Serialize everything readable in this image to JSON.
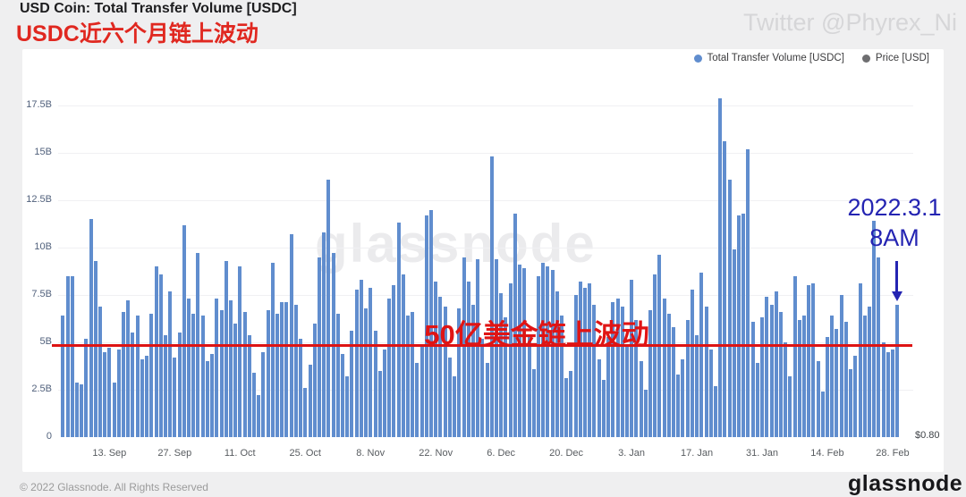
{
  "header": {
    "title": "USD Coin: Total Transfer Volume [USDC]",
    "subtitle_cn": "USDC近六个月链上波动",
    "twitter_handle": "Twitter @Phyrex_Ni"
  },
  "legend": {
    "items": [
      {
        "label": "Total Transfer Volume [USDC]",
        "color": "#608dce"
      },
      {
        "label": "Price [USD]",
        "color": "#6e6e70"
      }
    ]
  },
  "colors": {
    "bar": "#608dce",
    "annotation_red": "#dd1414",
    "annotation_blue": "#2424b2",
    "watermark_gray": "rgba(130,130,142,0.16)"
  },
  "chart_data": {
    "type": "bar",
    "title": "USD Coin: Total Transfer Volume [USDC]",
    "ylabel": "Total Transfer Volume [USDC]",
    "xlabel": "",
    "unit": "billions USD",
    "ylim": [
      0,
      18.35
    ],
    "grid": true,
    "legend_position": "top-right",
    "y_tick_values": [
      0,
      2.5,
      5,
      7.5,
      10,
      12.5,
      15,
      17.5
    ],
    "y_tick_labels": [
      "0",
      "2.5B",
      "5B",
      "7.5B",
      "10B",
      "12.5B",
      "15B",
      "17.5B"
    ],
    "x_tick_labels": [
      "13. Sep",
      "27. Sep",
      "11. Oct",
      "25. Oct",
      "8. Nov",
      "22. Nov",
      "6. Dec",
      "20. Dec",
      "3. Jan",
      "17. Jan",
      "31. Jan",
      "14. Feb",
      "28. Feb"
    ],
    "x_tick_indices": [
      10,
      24,
      38,
      52,
      66,
      80,
      94,
      108,
      122,
      136,
      150,
      164,
      178
    ],
    "x_range_note": "daily bars, early September 2021 to 1 March 2022",
    "values": [
      6.4,
      8.5,
      8.5,
      2.9,
      2.8,
      5.2,
      11.5,
      9.3,
      6.9,
      4.5,
      4.7,
      2.9,
      4.6,
      6.6,
      7.2,
      5.5,
      6.4,
      4.1,
      4.3,
      6.5,
      9.0,
      8.6,
      5.4,
      7.7,
      4.2,
      5.5,
      11.2,
      7.3,
      6.5,
      9.7,
      6.4,
      4.0,
      4.4,
      7.3,
      6.7,
      9.3,
      7.2,
      6.0,
      9.0,
      6.6,
      5.4,
      3.4,
      2.2,
      4.5,
      6.7,
      9.2,
      6.5,
      7.1,
      7.1,
      10.7,
      7.0,
      5.2,
      2.6,
      3.8,
      6.0,
      9.5,
      10.8,
      13.6,
      9.7,
      6.5,
      4.4,
      3.2,
      5.6,
      7.8,
      8.3,
      6.8,
      7.9,
      5.6,
      3.5,
      4.6,
      7.3,
      8.0,
      11.3,
      8.6,
      6.4,
      6.6,
      3.9,
      4.8,
      11.7,
      12.0,
      8.2,
      7.4,
      6.9,
      4.2,
      3.2,
      6.8,
      9.5,
      8.2,
      7.0,
      9.4,
      5.2,
      3.9,
      14.8,
      9.4,
      7.6,
      6.3,
      8.1,
      11.8,
      9.1,
      8.9,
      5.4,
      3.6,
      8.5,
      9.2,
      9.0,
      8.8,
      7.7,
      6.4,
      3.1,
      3.5,
      7.5,
      8.2,
      7.9,
      8.1,
      7.0,
      4.1,
      3.0,
      5.3,
      7.1,
      7.3,
      6.9,
      4.9,
      8.3,
      6.2,
      4.0,
      2.5,
      6.7,
      8.6,
      9.6,
      7.3,
      6.5,
      5.8,
      3.3,
      4.1,
      6.2,
      7.8,
      5.4,
      8.7,
      6.9,
      4.6,
      2.7,
      17.9,
      15.6,
      13.6,
      9.9,
      11.7,
      11.8,
      15.2,
      6.1,
      3.9,
      6.3,
      7.4,
      7.0,
      7.7,
      6.6,
      5.0,
      3.2,
      8.5,
      6.2,
      6.4,
      8.0,
      8.1,
      4.0,
      2.4,
      5.3,
      6.4,
      5.7,
      7.5,
      6.1,
      3.6,
      4.3,
      8.1,
      6.4,
      6.9,
      11.4,
      9.5,
      5.0,
      4.5,
      4.6,
      7.0
    ],
    "right_axis_label": "$0.80",
    "watermark": "glassnode",
    "annotations": {
      "threshold_line": {
        "value_label": "50亿美金链上波动",
        "approx_value_billion": 4.85,
        "color": "#dd1414"
      },
      "date_marker": {
        "line1": "2022.3.1",
        "line2": "8AM",
        "points_to": "last bar",
        "color": "#2424b2"
      }
    }
  },
  "footer": {
    "copyright": "© 2022 Glassnode. All Rights Reserved",
    "logo": "glassnode"
  }
}
